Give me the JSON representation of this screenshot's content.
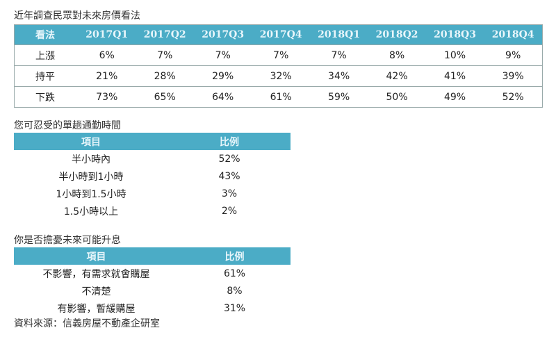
{
  "table1": {
    "title": "近年調查民眾對未來房價看法",
    "headers": [
      "看法",
      "2017Q1",
      "2017Q2",
      "2017Q3",
      "2017Q4",
      "2018Q1",
      "2018Q2",
      "2018Q3",
      "2018Q4"
    ],
    "rows": [
      [
        "上漲",
        "6%",
        "7%",
        "7%",
        "7%",
        "7%",
        "8%",
        "10%",
        "9%"
      ],
      [
        "持平",
        "21%",
        "28%",
        "29%",
        "32%",
        "34%",
        "42%",
        "41%",
        "39%"
      ],
      [
        "下跌",
        "73%",
        "65%",
        "64%",
        "61%",
        "59%",
        "50%",
        "49%",
        "52%"
      ]
    ]
  },
  "table2": {
    "title": "您可忍受的單趟通勤時間",
    "headers": [
      "項目",
      "比例"
    ],
    "rows": [
      [
        "半小時內",
        "52%"
      ],
      [
        "半小時到1小時",
        "43%"
      ],
      [
        "1小時到1.5小時",
        "3%"
      ],
      [
        "1.5小時以上",
        "2%"
      ]
    ]
  },
  "table3": {
    "title": "你是否擔憂未來可能升息",
    "headers": [
      "項目",
      "比例"
    ],
    "rows": [
      [
        "不影響，有需求就會購屋",
        "61%"
      ],
      [
        "不清楚",
        "8%"
      ],
      [
        "有影響，暫緩購屋",
        "31%"
      ]
    ]
  },
  "source": "資料來源：信義房屋不動產企研室",
  "colors": {
    "header": "#4bacc6"
  }
}
